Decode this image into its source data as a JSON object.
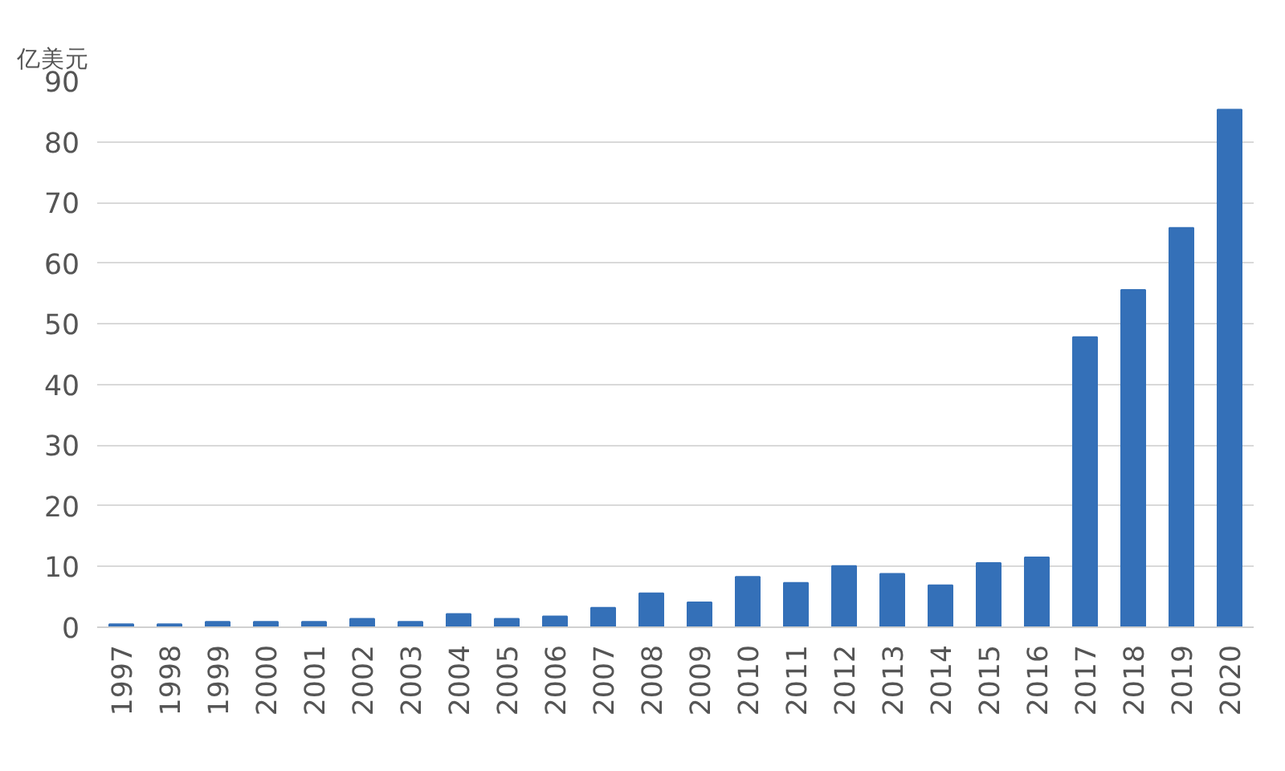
{
  "chart_data": {
    "type": "bar",
    "ylabel": "亿美元",
    "categories": [
      "1997",
      "1998",
      "1999",
      "2000",
      "2001",
      "2002",
      "2003",
      "2004",
      "2005",
      "2006",
      "2007",
      "2008",
      "2009",
      "2010",
      "2011",
      "2012",
      "2013",
      "2014",
      "2015",
      "2016",
      "2017",
      "2018",
      "2019",
      "2020"
    ],
    "values": [
      0.5,
      0.5,
      0.9,
      0.9,
      0.9,
      1.4,
      0.9,
      2.2,
      1.4,
      1.8,
      3.2,
      5.6,
      4.1,
      8.3,
      7.3,
      10.1,
      8.8,
      6.9,
      10.6,
      11.5,
      47.8,
      55.6,
      65.8,
      85.3
    ],
    "color": "#3470b8",
    "ylim": [
      0,
      90
    ],
    "yticks": [
      0,
      10,
      20,
      30,
      40,
      50,
      60,
      70,
      80,
      90
    ],
    "grid": "y"
  }
}
